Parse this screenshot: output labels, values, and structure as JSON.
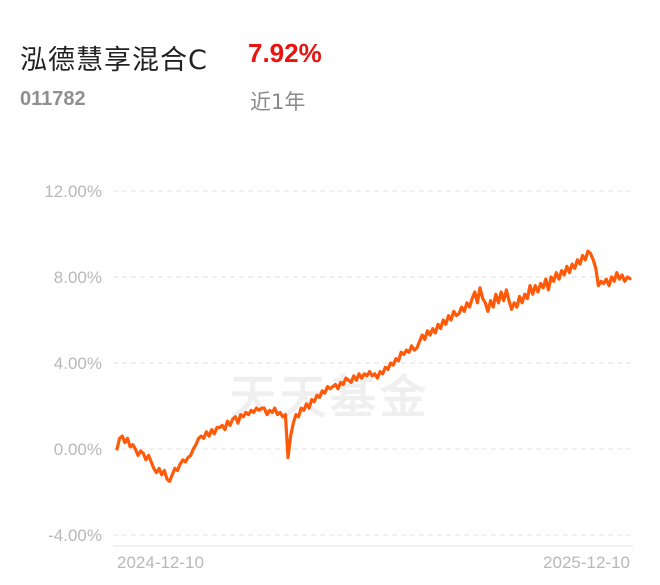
{
  "header": {
    "fund_name": "泓德慧享混合C",
    "return_value": "7.92%",
    "fund_code": "011782",
    "period_label": "近1年"
  },
  "watermark": "天天基金",
  "colors": {
    "line": "#ff5a0a",
    "return": "#e8140f",
    "grid": "#e2e2e2",
    "tick": "#b8b8b8"
  },
  "chart_data": {
    "type": "line",
    "title": "",
    "xlabel": "",
    "ylabel": "",
    "ylim": [
      -4,
      12
    ],
    "yticks": [
      12,
      8,
      4,
      0,
      -4
    ],
    "ytick_labels": [
      "12.00%",
      "8.00%",
      "4.00%",
      "0.00%",
      "-4.00%"
    ],
    "xtick_labels": [
      "2024-12-10",
      "2025-12-10"
    ],
    "grid": true,
    "x_start": "2024-12-10",
    "x_end": "2025-12-10",
    "series": [
      {
        "values": [
          0.0,
          0.5,
          0.6,
          0.3,
          0.5,
          0.1,
          0.2,
          0.0,
          -0.3,
          -0.1,
          -0.2,
          -0.5,
          -0.3,
          -0.6,
          -0.9,
          -1.1,
          -0.9,
          -1.2,
          -1.0,
          -1.4,
          -1.5,
          -1.2,
          -0.9,
          -1.0,
          -0.7,
          -0.5,
          -0.6,
          -0.4,
          -0.3,
          0.0,
          0.2,
          0.5,
          0.6,
          0.5,
          0.8,
          0.6,
          0.9,
          0.7,
          1.0,
          1.0,
          1.1,
          0.9,
          1.3,
          1.1,
          1.4,
          1.5,
          1.2,
          1.6,
          1.5,
          1.7,
          1.6,
          1.8,
          1.7,
          1.9,
          1.8,
          1.9,
          1.9,
          1.6,
          1.8,
          1.7,
          1.9,
          1.6,
          1.7,
          1.5,
          1.6,
          -0.4,
          0.6,
          1.2,
          1.6,
          1.5,
          1.9,
          1.8,
          2.1,
          1.9,
          2.3,
          2.2,
          2.5,
          2.4,
          2.7,
          2.6,
          2.9,
          2.8,
          2.9,
          3.0,
          2.8,
          3.1,
          3.0,
          3.3,
          3.2,
          3.1,
          3.4,
          3.2,
          3.5,
          3.3,
          3.5,
          3.4,
          3.6,
          3.4,
          3.5,
          3.3,
          3.6,
          3.5,
          3.8,
          3.7,
          4.0,
          3.9,
          4.2,
          4.1,
          4.5,
          4.4,
          4.6,
          4.5,
          4.8,
          4.6,
          4.7,
          5.0,
          5.3,
          5.1,
          5.5,
          5.3,
          5.6,
          5.4,
          5.8,
          5.6,
          6.0,
          5.8,
          6.2,
          6.0,
          6.4,
          6.2,
          6.3,
          6.6,
          6.4,
          6.8,
          6.6,
          7.0,
          7.3,
          6.8,
          7.5,
          7.0,
          6.8,
          6.4,
          6.9,
          6.6,
          7.2,
          6.8,
          7.3,
          6.9,
          7.4,
          6.9,
          6.5,
          6.8,
          6.6,
          7.1,
          6.8,
          7.2,
          7.0,
          7.6,
          7.2,
          7.6,
          7.3,
          7.7,
          7.5,
          7.9,
          7.4,
          8.0,
          7.8,
          8.2,
          7.9,
          8.3,
          8.1,
          8.5,
          8.2,
          8.6,
          8.4,
          8.8,
          8.6,
          9.0,
          8.8,
          9.2,
          9.1,
          8.8,
          8.4,
          7.6,
          7.8,
          7.7,
          7.9,
          7.6,
          8.0,
          7.8,
          8.2,
          7.9,
          8.1,
          7.8,
          8.0,
          7.92
        ]
      }
    ]
  }
}
